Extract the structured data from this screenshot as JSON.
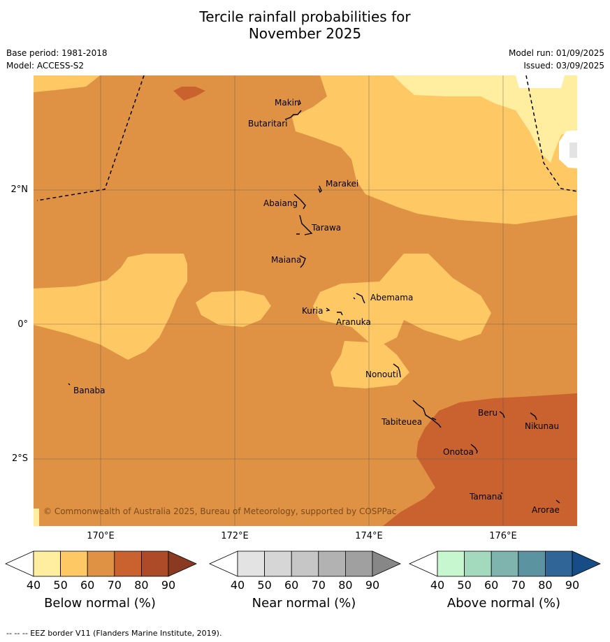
{
  "title_line1": "Tercile rainfall probabilities for",
  "title_line2": "November 2025",
  "base_period": "Base period: 1981-2018",
  "model": "Model: ACCESS-S2",
  "model_run": "Model run: 01/09/2025",
  "issued": "Issued: 03/09/2025",
  "copyright": "© Commonwealth of Australia 2025, Bureau of Meteorology, supported by COSPPac",
  "lat_labels": [
    "2°N",
    "0°",
    "2°S"
  ],
  "lon_labels": [
    "170°E",
    "172°E",
    "174°E",
    "176°E"
  ],
  "places": [
    "Makin",
    "Butaritari",
    "Marakei",
    "Abaiang",
    "Tarawa",
    "Maiana",
    "Abemama",
    "Kuria",
    "Aranuka",
    "Nonouti",
    "Banaba",
    "Beru",
    "Nikunau",
    "Tabiteuea",
    "Onotoa",
    "Tamana",
    "Arorae"
  ],
  "colorbars": [
    {
      "label": "Below normal (%)",
      "ticks": [
        "40",
        "50",
        "60",
        "70",
        "80",
        "90"
      ],
      "colors": [
        "#ffffff",
        "#ffeda0",
        "#fec965",
        "#df9243",
        "#c9622e",
        "#ad4a27",
        "#8b3a22"
      ]
    },
    {
      "label": "Near normal (%)",
      "ticks": [
        "40",
        "50",
        "60",
        "70",
        "80",
        "90"
      ],
      "colors": [
        "#ffffff",
        "#e3e3e3",
        "#d6d6d6",
        "#c6c6c6",
        "#b2b2b2",
        "#a0a0a0",
        "#878787"
      ]
    },
    {
      "label": "Above normal (%)",
      "ticks": [
        "40",
        "50",
        "60",
        "70",
        "80",
        "90"
      ],
      "colors": [
        "#ffffff",
        "#c7f7cf",
        "#a3d9bc",
        "#7fb3ae",
        "#5b93a0",
        "#2f6597",
        "#174d86"
      ]
    }
  ],
  "footnote": "--  --  -- EEZ border V11 (Flanders Marine Institute, 2019)."
}
